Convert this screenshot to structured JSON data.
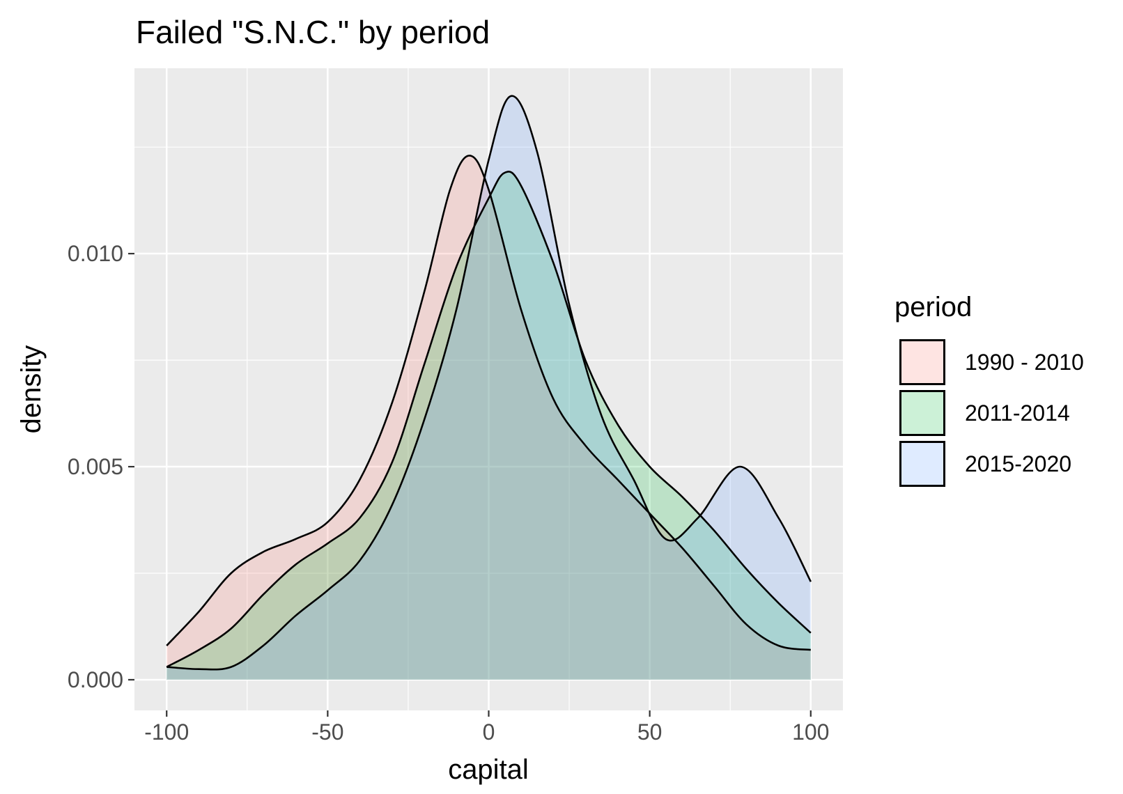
{
  "chart_data": {
    "type": "area",
    "title": "Failed \"S.N.C.\" by period",
    "xlabel": "capital",
    "ylabel": "density",
    "xlim": [
      -110,
      110
    ],
    "ylim": [
      -0.00072,
      0.01435
    ],
    "x_ticks": [
      -100,
      -50,
      0,
      50,
      100
    ],
    "x_tick_labels": [
      "-100",
      "-50",
      "0",
      "50",
      "100"
    ],
    "y_ticks": [
      0,
      0.005,
      0.01
    ],
    "y_tick_labels": [
      "0.000",
      "0.005",
      "0.010"
    ],
    "grid": true,
    "legend": {
      "title": "period",
      "position": "right"
    },
    "series": [
      {
        "name": "1990 - 2010",
        "color": "#F8766D",
        "points": [
          [
            -100,
            0.0008
          ],
          [
            -90,
            0.0016
          ],
          [
            -80,
            0.0025
          ],
          [
            -70,
            0.003
          ],
          [
            -60,
            0.0033
          ],
          [
            -50,
            0.0037
          ],
          [
            -40,
            0.0047
          ],
          [
            -30,
            0.0065
          ],
          [
            -20,
            0.0091
          ],
          [
            -12,
            0.0115
          ],
          [
            -6,
            0.0123
          ],
          [
            0,
            0.0115
          ],
          [
            10,
            0.0087
          ],
          [
            20,
            0.0066
          ],
          [
            30,
            0.0055
          ],
          [
            40,
            0.0047
          ],
          [
            50,
            0.0039
          ],
          [
            60,
            0.0031
          ],
          [
            70,
            0.0022
          ],
          [
            80,
            0.0013
          ],
          [
            90,
            0.0008
          ],
          [
            100,
            0.0007
          ]
        ]
      },
      {
        "name": "2011-2014",
        "color": "#00BA38",
        "points": [
          [
            -100,
            0.0003
          ],
          [
            -90,
            0.0007
          ],
          [
            -80,
            0.0012
          ],
          [
            -70,
            0.002
          ],
          [
            -60,
            0.0027
          ],
          [
            -50,
            0.0032
          ],
          [
            -40,
            0.0038
          ],
          [
            -30,
            0.0051
          ],
          [
            -20,
            0.0074
          ],
          [
            -10,
            0.0097
          ],
          [
            0,
            0.0113
          ],
          [
            5,
            0.0119
          ],
          [
            10,
            0.0116
          ],
          [
            20,
            0.0098
          ],
          [
            30,
            0.0075
          ],
          [
            40,
            0.006
          ],
          [
            50,
            0.005
          ],
          [
            60,
            0.0043
          ],
          [
            70,
            0.0035
          ],
          [
            80,
            0.0026
          ],
          [
            90,
            0.0018
          ],
          [
            100,
            0.0011
          ]
        ]
      },
      {
        "name": "2015-2020",
        "color": "#619CFF",
        "points": [
          [
            -100,
            0.0003
          ],
          [
            -90,
            0.00025
          ],
          [
            -80,
            0.0003
          ],
          [
            -70,
            0.0008
          ],
          [
            -60,
            0.0015
          ],
          [
            -50,
            0.0021
          ],
          [
            -40,
            0.0028
          ],
          [
            -30,
            0.0041
          ],
          [
            -20,
            0.0061
          ],
          [
            -10,
            0.0087
          ],
          [
            0,
            0.0122
          ],
          [
            7,
            0.0137
          ],
          [
            15,
            0.0124
          ],
          [
            25,
            0.0088
          ],
          [
            35,
            0.0062
          ],
          [
            45,
            0.0047
          ],
          [
            55,
            0.0033
          ],
          [
            65,
            0.0038
          ],
          [
            78,
            0.005
          ],
          [
            90,
            0.0038
          ],
          [
            100,
            0.0023
          ]
        ]
      }
    ]
  }
}
